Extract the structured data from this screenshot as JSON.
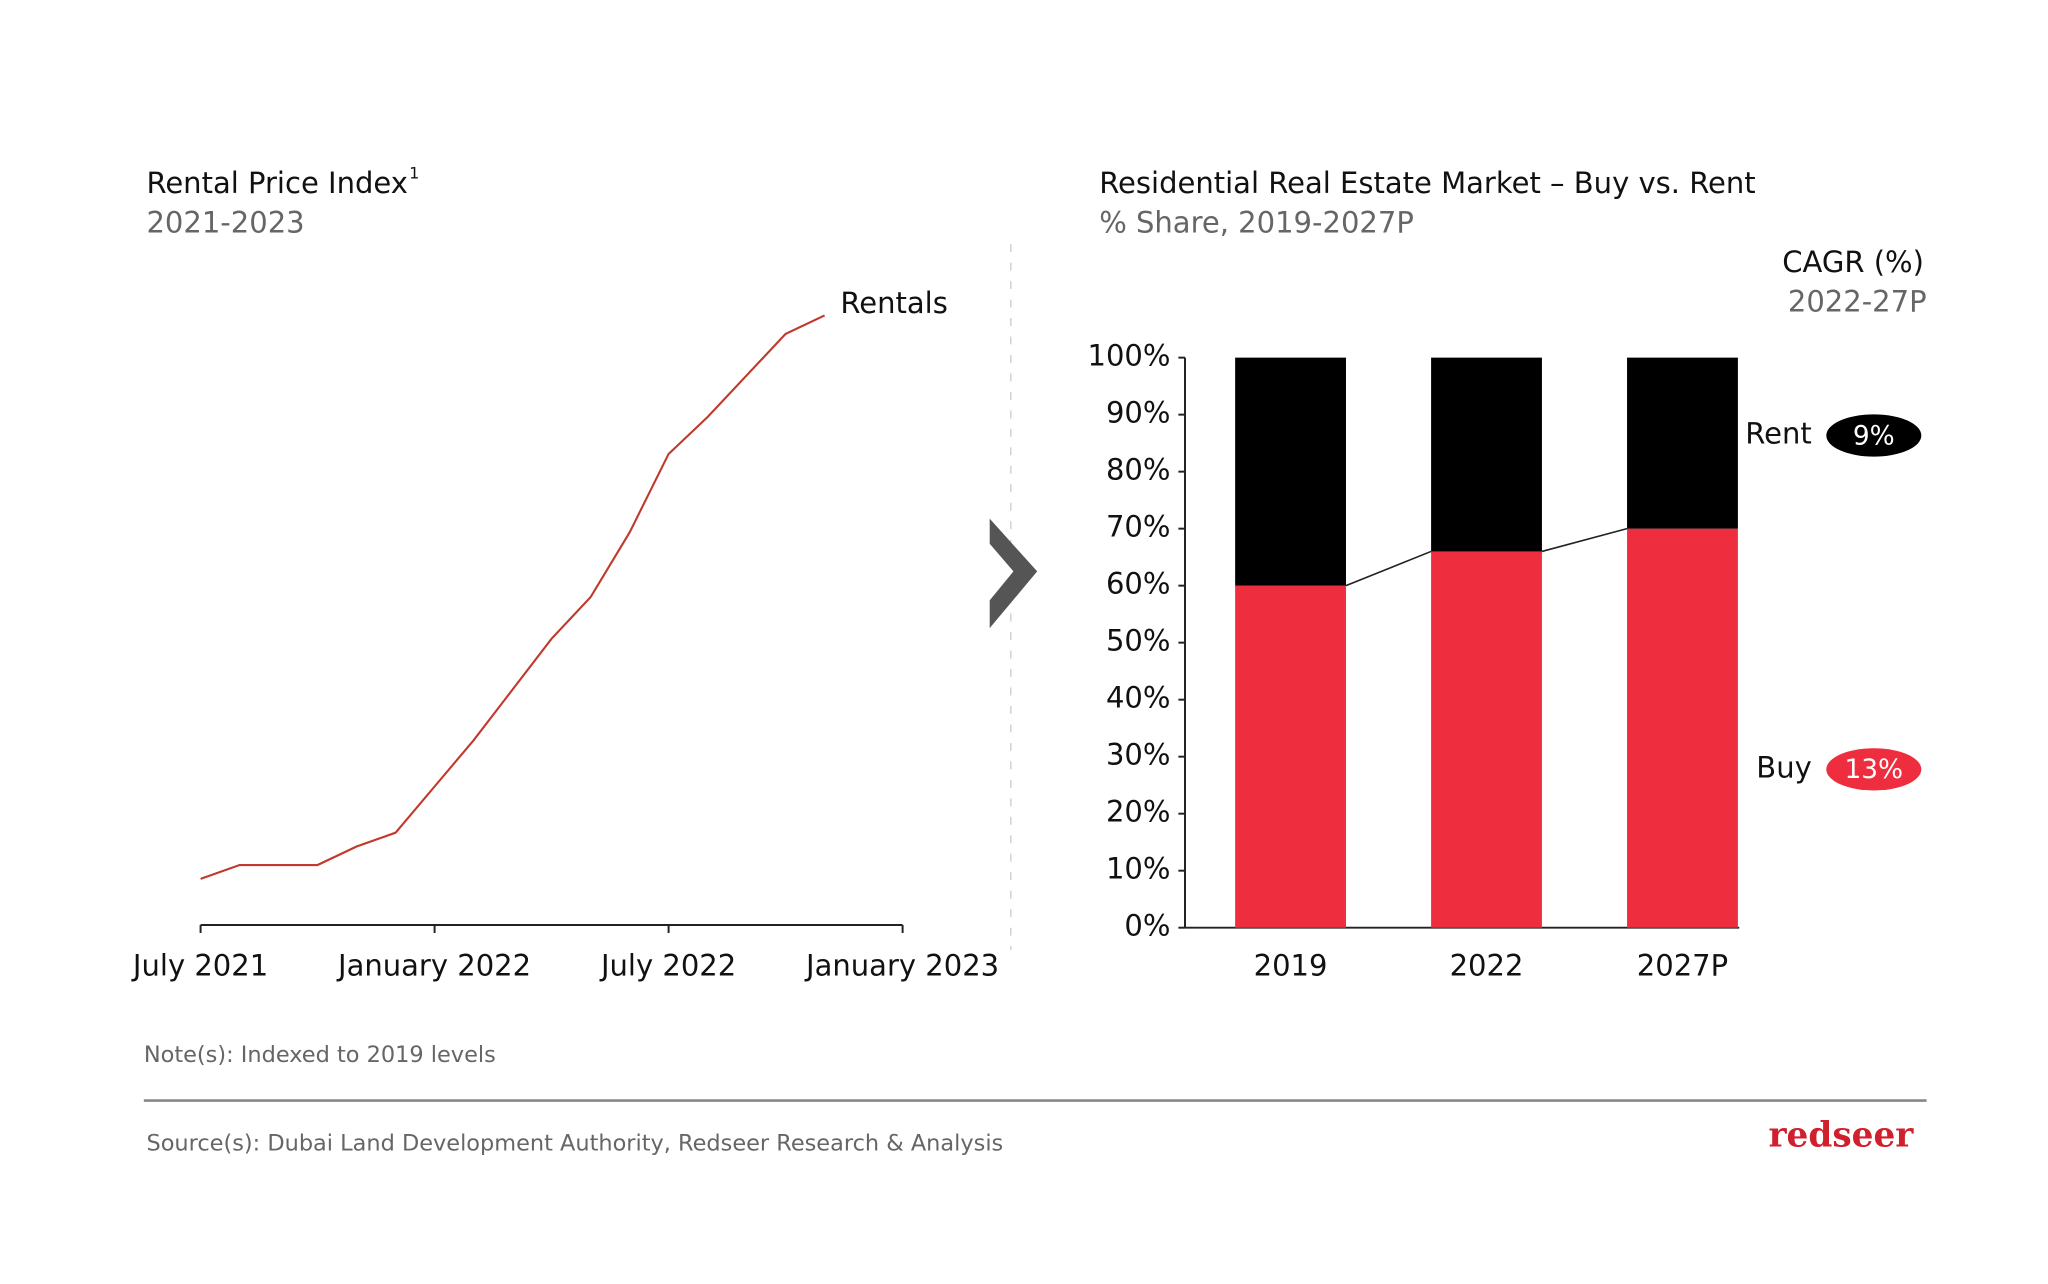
{
  "chart_data": [
    {
      "type": "line",
      "title": "Rental Price Index",
      "title_footnote": "1",
      "subtitle": "2021-2023",
      "x": [
        "2021-07",
        "2021-08",
        "2021-09",
        "2021-10",
        "2021-11",
        "2021-12",
        "2022-01",
        "2022-02",
        "2022-03",
        "2022-04",
        "2022-05",
        "2022-06",
        "2022-07",
        "2022-08",
        "2022-09",
        "2022-10",
        "2022-11"
      ],
      "series": [
        {
          "name": "Rentals",
          "color": "#c0392b",
          "values": [
            100,
            103,
            103,
            103,
            107,
            110,
            120,
            130,
            141,
            152,
            161,
            175,
            192,
            200,
            209,
            218,
            222
          ]
        }
      ],
      "xlim": [
        "2021-07",
        "2023-01"
      ],
      "xticks": [
        {
          "value": "2021-07",
          "label": "July 2021"
        },
        {
          "value": "2022-01",
          "label": "January 2022"
        },
        {
          "value": "2022-07",
          "label": "July 2022"
        },
        {
          "value": "2023-01",
          "label": "January 2023"
        }
      ],
      "ylim": [
        90,
        250
      ],
      "note": "Note(s): Indexed to 2019 levels"
    },
    {
      "type": "stacked-bar",
      "title": "Residential Real Estate Market – Buy vs. Rent",
      "subtitle": "% Share, 2019-2027P",
      "annotation_title": "CAGR (%)",
      "annotation_subtitle": "2022-27P",
      "categories": [
        "2019",
        "2022",
        "2027P"
      ],
      "series": [
        {
          "name": "Buy",
          "color": "#ee2e3f",
          "values": [
            60,
            66,
            70
          ],
          "cagr": 13,
          "cagr_label": "13%"
        },
        {
          "name": "Rent",
          "color": "#000000",
          "values": [
            40,
            34,
            30
          ],
          "cagr": 9,
          "cagr_label": "9%"
        }
      ],
      "ylim": [
        0,
        100
      ],
      "yticks": [
        {
          "value": 0,
          "label": "0%"
        },
        {
          "value": 10,
          "label": "10%"
        },
        {
          "value": 20,
          "label": "20%"
        },
        {
          "value": 30,
          "label": "30%"
        },
        {
          "value": 40,
          "label": "40%"
        },
        {
          "value": 50,
          "label": "50%"
        },
        {
          "value": 60,
          "label": "60%"
        },
        {
          "value": 70,
          "label": "70%"
        },
        {
          "value": 80,
          "label": "80%"
        },
        {
          "value": 90,
          "label": "90%"
        },
        {
          "value": 100,
          "label": "100%"
        }
      ]
    }
  ],
  "source": "Source(s): Dubai Land Development Authority, Redseer Research & Analysis",
  "logo": "redseer"
}
